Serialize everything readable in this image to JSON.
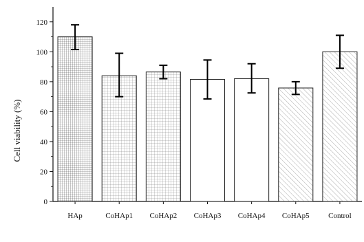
{
  "chart_data": {
    "type": "bar",
    "categories": [
      "HAp",
      "CoHAp1",
      "CoHAp2",
      "CoHAp3",
      "CoHAp4",
      "CoHAp5",
      "Control"
    ],
    "values": [
      110,
      84,
      86.5,
      81.5,
      82,
      75.8,
      100
    ],
    "errors": [
      [
        101.5,
        118
      ],
      [
        70,
        99
      ],
      [
        82,
        91
      ],
      [
        68.5,
        94.5
      ],
      [
        72.5,
        92
      ],
      [
        71.5,
        80
      ],
      [
        89,
        111
      ]
    ],
    "patterns": [
      "dense-grid",
      "grid",
      "grid",
      "none",
      "none",
      "diagonal",
      "diagonal"
    ],
    "title": "",
    "xlabel": "",
    "ylabel": "Cell viability (%)",
    "ylim": [
      0,
      130
    ],
    "yticks": [
      0,
      20,
      40,
      60,
      80,
      100,
      120
    ],
    "grid": false,
    "colors": {
      "bar_edge": "#222222",
      "pattern": "#666666",
      "axis": "#111111"
    }
  }
}
